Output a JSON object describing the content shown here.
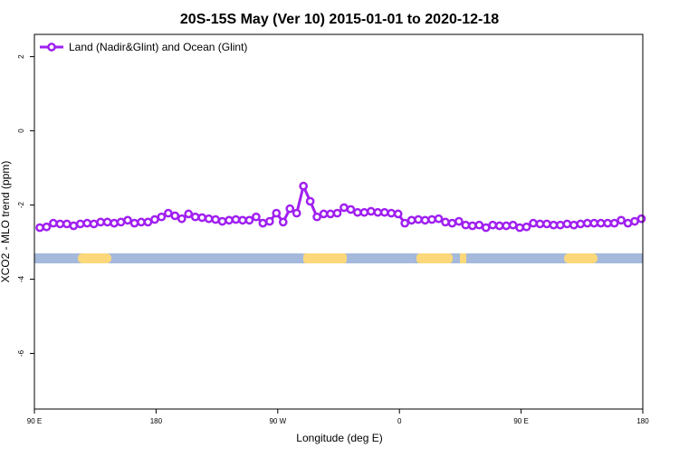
{
  "chart_data": {
    "type": "line",
    "title": "20S-15S May (Ver 10)   2015-01-01 to 2020-12-18",
    "x_label": "Longitude (deg E)",
    "y_label": "XCO2 - MLO trend (ppm)",
    "legend": "top-left",
    "xlim": [
      90,
      540
    ],
    "xticks": [
      {
        "value": 90,
        "label": "90 E"
      },
      180,
      {
        "value": 270,
        "label": "90 W"
      },
      {
        "value": 360,
        "label": "0"
      },
      {
        "value": 450,
        "label": "90 E"
      },
      {
        "value": 540,
        "label": "180"
      }
    ],
    "ylim": [
      -7.5,
      2.6
    ],
    "yticks": [
      -6,
      -4,
      -2,
      0,
      2
    ],
    "x": [
      94,
      99,
      104,
      109,
      114,
      119,
      124,
      129,
      134,
      139,
      144,
      149,
      154,
      159,
      164,
      169,
      174,
      179,
      184,
      189,
      194,
      199,
      204,
      209,
      214,
      219,
      224,
      229,
      234,
      239,
      244,
      249,
      254,
      259,
      264,
      269,
      274,
      279,
      284,
      289,
      294,
      299,
      304,
      309,
      314,
      319,
      324,
      329,
      334,
      339,
      344,
      349,
      354,
      359,
      364,
      369,
      374,
      379,
      384,
      389,
      394,
      399,
      404,
      409,
      414,
      419,
      424,
      429,
      434,
      439,
      444,
      449,
      454,
      459,
      464,
      469,
      474,
      479,
      484,
      489,
      494,
      499,
      504,
      509,
      514,
      519,
      524,
      529,
      534,
      539
    ],
    "series": [
      {
        "name": "Land (Nadir&Glint) and Ocean (Glint)",
        "color": "#a020f0",
        "values": [
          -2.61,
          -2.59,
          -2.49,
          -2.51,
          -2.51,
          -2.56,
          -2.51,
          -2.49,
          -2.51,
          -2.46,
          -2.46,
          -2.49,
          -2.46,
          -2.41,
          -2.49,
          -2.46,
          -2.46,
          -2.39,
          -2.32,
          -2.22,
          -2.29,
          -2.37,
          -2.24,
          -2.32,
          -2.34,
          -2.37,
          -2.39,
          -2.44,
          -2.41,
          -2.39,
          -2.41,
          -2.41,
          -2.32,
          -2.49,
          -2.44,
          -2.22,
          -2.46,
          -2.1,
          -2.22,
          -1.49,
          -1.9,
          -2.32,
          -2.24,
          -2.24,
          -2.22,
          -2.07,
          -2.12,
          -2.2,
          -2.2,
          -2.17,
          -2.2,
          -2.2,
          -2.22,
          -2.24,
          -2.49,
          -2.41,
          -2.39,
          -2.41,
          -2.39,
          -2.37,
          -2.46,
          -2.49,
          -2.44,
          -2.54,
          -2.56,
          -2.54,
          -2.61,
          -2.54,
          -2.56,
          -2.56,
          -2.54,
          -2.61,
          -2.59,
          -2.49,
          -2.51,
          -2.51,
          -2.54,
          -2.54,
          -2.51,
          -2.54,
          -2.51,
          -2.49,
          -2.49,
          -2.49,
          -2.49,
          -2.49,
          -2.41,
          -2.49,
          -2.44,
          -2.37
        ]
      }
    ]
  }
}
